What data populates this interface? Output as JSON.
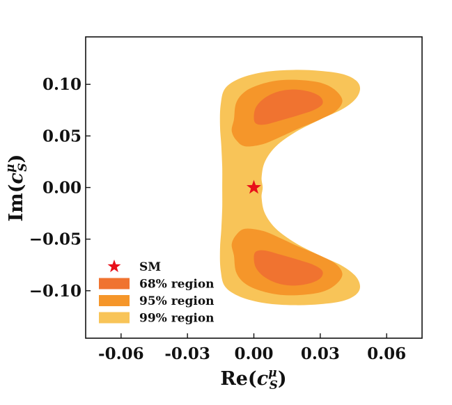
{
  "chart_data": {
    "type": "contour",
    "xlabel": {
      "prefix": "Re(",
      "var": "c",
      "sup": "μ",
      "sub": "S",
      "suffix": ")"
    },
    "ylabel": {
      "prefix": "Im(",
      "var": "c",
      "sup": "μ",
      "sub": "S",
      "suffix": ")"
    },
    "xlim": [
      -0.076,
      0.076
    ],
    "ylim": [
      -0.146,
      0.146
    ],
    "xticks": [
      -0.06,
      -0.03,
      0.0,
      0.03,
      0.06
    ],
    "xtick_labels": [
      "-0.06",
      "-0.03",
      "0.00",
      "0.03",
      "0.06"
    ],
    "yticks": [
      -0.1,
      -0.05,
      0.0,
      0.05,
      0.1
    ],
    "ytick_labels": [
      "−0.10",
      "−0.05",
      "0.00",
      "0.05",
      "0.10"
    ],
    "grid": false,
    "legend_position": "lower-left",
    "colors": {
      "r68": "#f07330",
      "r95": "#f5962a",
      "r99": "#f8c458",
      "sm": "#e8101a"
    },
    "regions": [
      {
        "name": "99% region",
        "level": 99,
        "outline": [
          [
            -0.015,
            0.08
          ],
          [
            -0.013,
            0.096
          ],
          [
            -0.006,
            0.106
          ],
          [
            0.005,
            0.112
          ],
          [
            0.018,
            0.114
          ],
          [
            0.03,
            0.113
          ],
          [
            0.04,
            0.11
          ],
          [
            0.046,
            0.104
          ],
          [
            0.048,
            0.096
          ],
          [
            0.046,
            0.086
          ],
          [
            0.04,
            0.076
          ],
          [
            0.03,
            0.066
          ],
          [
            0.019,
            0.054
          ],
          [
            0.01,
            0.04
          ],
          [
            0.005,
            0.025
          ],
          [
            0.0035,
            0.01
          ],
          [
            0.004,
            0.0
          ],
          [
            0.0035,
            -0.01
          ],
          [
            0.005,
            -0.025
          ],
          [
            0.01,
            -0.04
          ],
          [
            0.019,
            -0.054
          ],
          [
            0.03,
            -0.066
          ],
          [
            0.04,
            -0.076
          ],
          [
            0.046,
            -0.086
          ],
          [
            0.048,
            -0.096
          ],
          [
            0.046,
            -0.104
          ],
          [
            0.04,
            -0.11
          ],
          [
            0.03,
            -0.113
          ],
          [
            0.018,
            -0.114
          ],
          [
            0.005,
            -0.112
          ],
          [
            -0.006,
            -0.106
          ],
          [
            -0.013,
            -0.096
          ],
          [
            -0.015,
            -0.08
          ],
          [
            -0.0153,
            -0.06
          ],
          [
            -0.0147,
            -0.04
          ],
          [
            -0.0143,
            -0.02
          ],
          [
            -0.0143,
            0.0
          ],
          [
            -0.0143,
            0.02
          ],
          [
            -0.0147,
            0.04
          ],
          [
            -0.0153,
            0.06
          ]
        ]
      },
      {
        "name": "95% region",
        "level": 95,
        "outline": [
          [
            -0.009,
            0.066
          ],
          [
            -0.008,
            0.082
          ],
          [
            -0.004,
            0.093
          ],
          [
            0.003,
            0.1
          ],
          [
            0.012,
            0.104
          ],
          [
            0.022,
            0.104
          ],
          [
            0.031,
            0.101
          ],
          [
            0.037,
            0.094
          ],
          [
            0.04,
            0.084
          ],
          [
            0.037,
            0.074
          ],
          [
            0.03,
            0.066
          ],
          [
            0.02,
            0.057
          ],
          [
            0.012,
            0.049
          ],
          [
            0.004,
            0.042
          ],
          [
            -0.004,
            0.04
          ],
          [
            -0.008,
            0.046
          ],
          [
            -0.01,
            0.055
          ],
          [
            -0.01,
            -0.055
          ],
          [
            -0.008,
            -0.046
          ],
          [
            -0.004,
            -0.04
          ],
          [
            0.004,
            -0.042
          ],
          [
            0.012,
            -0.049
          ],
          [
            0.02,
            -0.057
          ],
          [
            0.03,
            -0.066
          ],
          [
            0.037,
            -0.074
          ],
          [
            0.04,
            -0.084
          ],
          [
            0.037,
            -0.094
          ],
          [
            0.031,
            -0.101
          ],
          [
            0.022,
            -0.104
          ],
          [
            0.012,
            -0.104
          ],
          [
            0.003,
            -0.1
          ],
          [
            -0.004,
            -0.093
          ],
          [
            -0.008,
            -0.082
          ],
          [
            -0.009,
            -0.066
          ]
        ]
      },
      {
        "name": "68% region",
        "level": 68,
        "outline": [
          [
            0.0,
            0.068
          ],
          [
            0.001,
            0.078
          ],
          [
            0.005,
            0.087
          ],
          [
            0.011,
            0.093
          ],
          [
            0.018,
            0.095
          ],
          [
            0.025,
            0.093
          ],
          [
            0.03,
            0.088
          ],
          [
            0.031,
            0.081
          ],
          [
            0.027,
            0.075
          ],
          [
            0.02,
            0.07
          ],
          [
            0.012,
            0.065
          ],
          [
            0.005,
            0.061
          ],
          [
            0.001,
            0.062
          ],
          [
            0.0,
            -0.068
          ],
          [
            0.001,
            -0.062
          ],
          [
            0.005,
            -0.061
          ],
          [
            0.012,
            -0.065
          ],
          [
            0.02,
            -0.07
          ],
          [
            0.027,
            -0.075
          ],
          [
            0.031,
            -0.081
          ],
          [
            0.03,
            -0.088
          ],
          [
            0.025,
            -0.093
          ],
          [
            0.018,
            -0.095
          ],
          [
            0.011,
            -0.093
          ],
          [
            0.005,
            -0.087
          ],
          [
            0.001,
            -0.078
          ]
        ]
      }
    ],
    "points": [
      {
        "name": "SM",
        "x": 0.0,
        "y": 0.0
      }
    ],
    "legend": [
      {
        "kind": "star",
        "label": "SM",
        "color_key": "sm"
      },
      {
        "kind": "patch",
        "label": "68% region",
        "color_key": "r68"
      },
      {
        "kind": "patch",
        "label": "95% region",
        "color_key": "r95"
      },
      {
        "kind": "patch",
        "label": "99% region",
        "color_key": "r99"
      }
    ]
  }
}
